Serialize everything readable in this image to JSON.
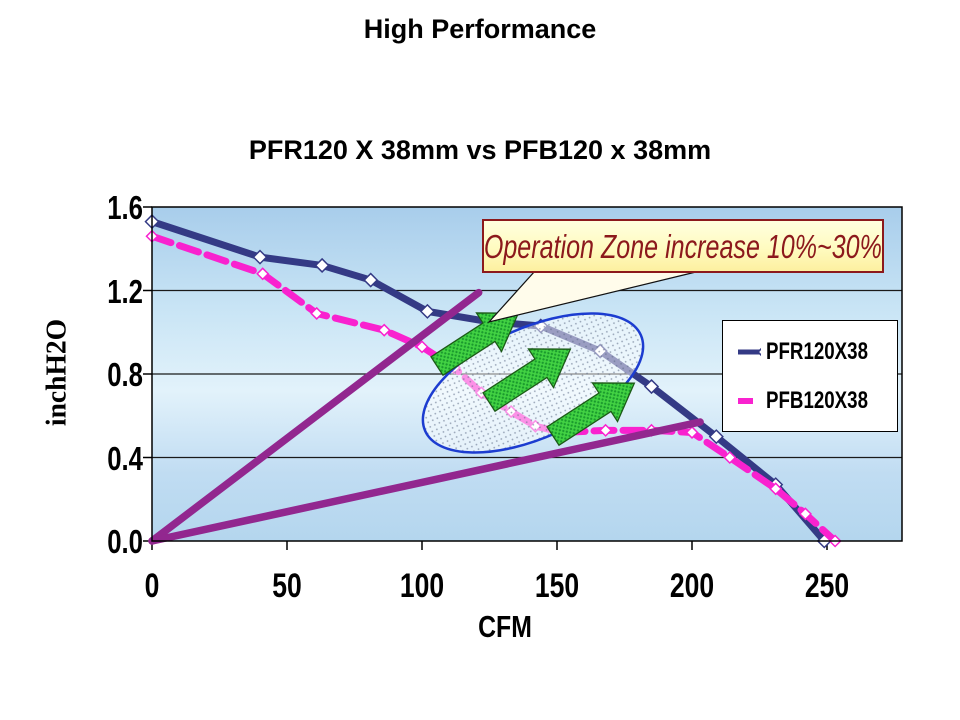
{
  "slide": {
    "title": "High Performance"
  },
  "chart_data": {
    "type": "line",
    "title": "PFR120 X 38mm vs PFB120 x 38mm",
    "xlabel": "CFM",
    "ylabel": "inchH2O",
    "x_ticks": [
      "0",
      "50",
      "100",
      "150",
      "200",
      "250"
    ],
    "x_tick_values": [
      0,
      50,
      100,
      150,
      200,
      250
    ],
    "y_ticks": [
      "0.0",
      "0.4",
      "0.8",
      "1.2",
      "1.6"
    ],
    "y_tick_values": [
      0.0,
      0.4,
      0.8,
      1.2,
      1.6
    ],
    "xlim": [
      0,
      278
    ],
    "ylim": [
      0,
      1.6
    ],
    "grid": "horizontal",
    "legend_position": "inside-right",
    "annotation": "Operation Zone increase 10%~30%",
    "series": [
      {
        "name": "PFR120X38",
        "color": "#343a85",
        "style": "solid",
        "marker": "diamond",
        "points": [
          [
            0,
            1.53
          ],
          [
            40,
            1.36
          ],
          [
            63,
            1.32
          ],
          [
            81,
            1.25
          ],
          [
            102,
            1.1
          ],
          [
            125,
            1.05
          ],
          [
            144,
            1.03
          ],
          [
            166,
            0.91
          ],
          [
            185,
            0.74
          ],
          [
            209,
            0.5
          ],
          [
            231,
            0.27
          ],
          [
            249,
            0.0
          ]
        ]
      },
      {
        "name": "PFB120X38",
        "color": "#f922cf",
        "style": "dashed",
        "marker": "diamond",
        "points": [
          [
            0,
            1.46
          ],
          [
            41,
            1.28
          ],
          [
            61,
            1.09
          ],
          [
            86,
            1.01
          ],
          [
            100,
            0.93
          ],
          [
            112,
            0.83
          ],
          [
            122,
            0.71
          ],
          [
            133,
            0.62
          ],
          [
            142,
            0.55
          ],
          [
            152,
            0.52
          ],
          [
            168,
            0.53
          ],
          [
            185,
            0.53
          ],
          [
            200,
            0.52
          ],
          [
            214,
            0.4
          ],
          [
            231,
            0.25
          ],
          [
            242,
            0.13
          ],
          [
            253,
            0.0
          ]
        ]
      }
    ],
    "impedance_lines": [
      {
        "name": "system-impedance-steep",
        "points": [
          [
            0,
            0
          ],
          [
            121,
            1.19
          ]
        ]
      },
      {
        "name": "system-impedance-shallow",
        "points": [
          [
            0,
            0
          ],
          [
            203,
            0.57
          ]
        ]
      }
    ]
  },
  "legend": {
    "items": [
      {
        "label": "PFR120X38",
        "color": "#343a85",
        "style": "solid-diamond"
      },
      {
        "label": "PFB120X38",
        "color": "#f922cf",
        "style": "dashed"
      }
    ]
  },
  "colors": {
    "pfr_line": "#343a85",
    "pfb_line": "#f922cf",
    "impedance_line": "#92278f",
    "operation_zone_outline": "#1c3cd0",
    "arrow_green": "#42d243",
    "callout_text": "#8c191c",
    "callout_bg": "#fffbc0",
    "plot_bg_top": "#a8cdeb",
    "plot_bg_mid": "#e2f2fb",
    "plot_bg_bottom": "#b4d6ee"
  }
}
